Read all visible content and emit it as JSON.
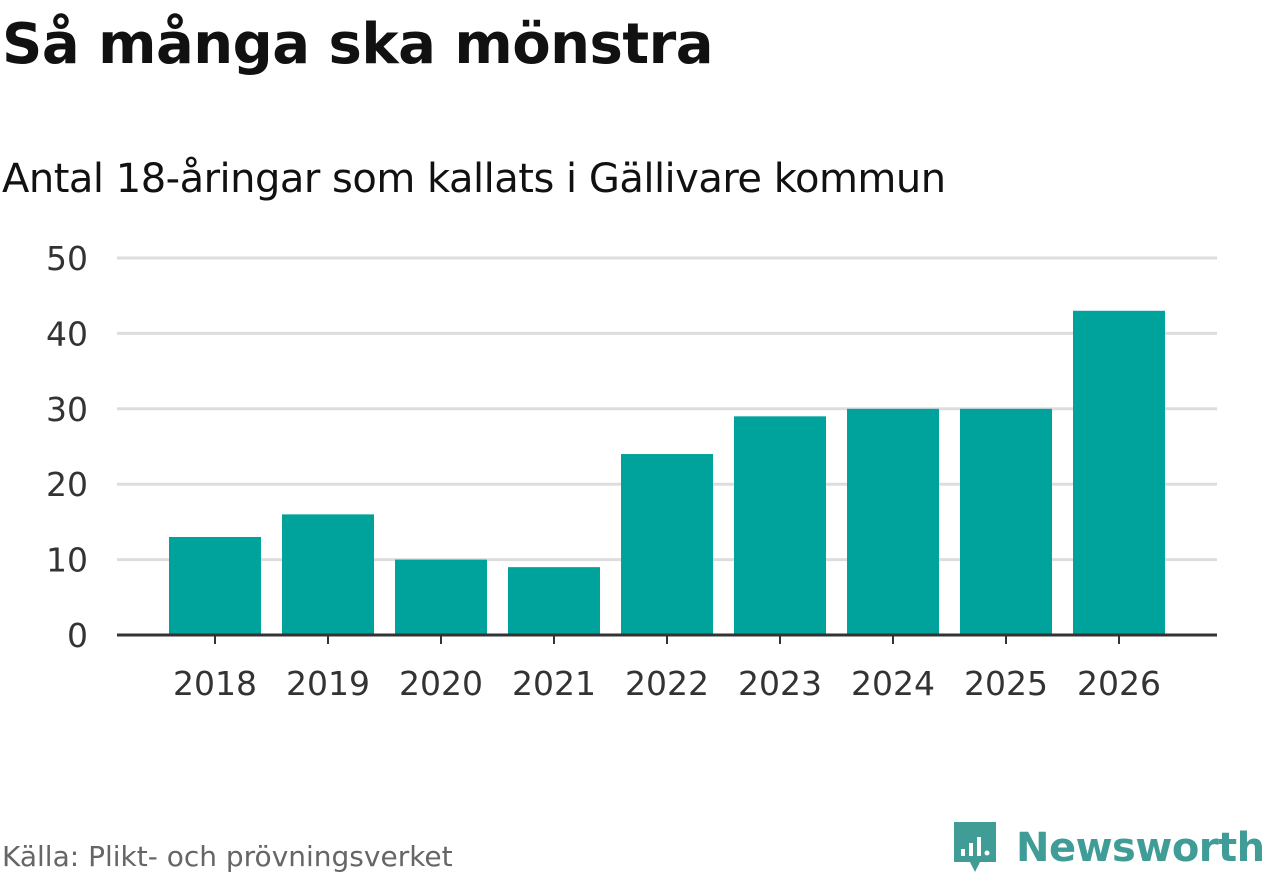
{
  "header": {
    "title": "Så många ska mönstra",
    "subtitle": "Antal 18-åringar som kallats i Gällivare kommun"
  },
  "footer": {
    "source": "Källa: Plikt- och prövningsverket",
    "brand": "Newsworthy"
  },
  "colors": {
    "bar": "#00a39b",
    "grid": "#dddddd",
    "axis": "#333333",
    "tick_text": "#333333",
    "brand": "#3f9c96"
  },
  "chart_data": {
    "type": "bar",
    "title": "Så många ska mönstra",
    "subtitle": "Antal 18-åringar som kallats i Gällivare kommun",
    "xlabel": "",
    "ylabel": "",
    "categories": [
      "2018",
      "2019",
      "2020",
      "2021",
      "2022",
      "2023",
      "2024",
      "2025",
      "2026"
    ],
    "values": [
      13,
      16,
      10,
      9,
      24,
      29,
      30,
      30,
      43
    ],
    "ylim": [
      0,
      50
    ],
    "yticks": [
      0,
      10,
      20,
      30,
      40,
      50
    ],
    "grid": true,
    "legend": "none"
  }
}
